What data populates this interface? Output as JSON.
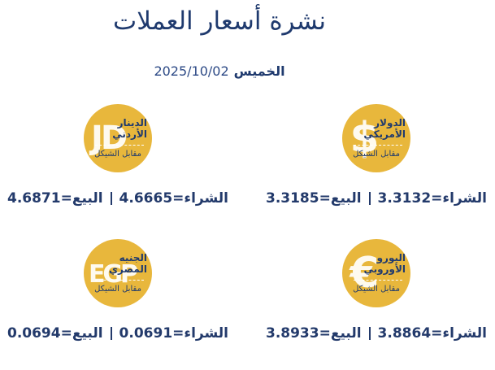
{
  "header": {
    "title": "نشرة أسعار العملات",
    "day": "الخميس",
    "date": "2025/10/02"
  },
  "currencies": [
    {
      "symbol": "$",
      "name": [
        "الدولار",
        "الأمريكي"
      ],
      "subtitle": "مقابل الشيكل",
      "buy_label": "الشراء=",
      "buy": 3.3132,
      "sell_label": "البيع=",
      "sell": 3.3185
    },
    {
      "symbol": "JD",
      "name": [
        "الدينار",
        "الأردني"
      ],
      "subtitle": "مقابل الشيكل",
      "buy_label": "الشراء=",
      "buy": 4.6665,
      "sell_label": "البيع=",
      "sell": 4.6871
    },
    {
      "symbol": "€",
      "name": [
        "اليورو",
        "الأوروبي"
      ],
      "subtitle": "مقابل الشيكل",
      "buy_label": "الشراء=",
      "buy": 3.8864,
      "sell_label": "البيع=",
      "sell": 3.8933
    },
    {
      "symbol": "EGP",
      "name": [
        "الجنيه",
        "المصري"
      ],
      "subtitle": "مقابل الشيكل",
      "buy_label": "الشراء=",
      "buy": 0.0691,
      "sell_label": "البيع=",
      "sell": 0.0694
    }
  ]
}
